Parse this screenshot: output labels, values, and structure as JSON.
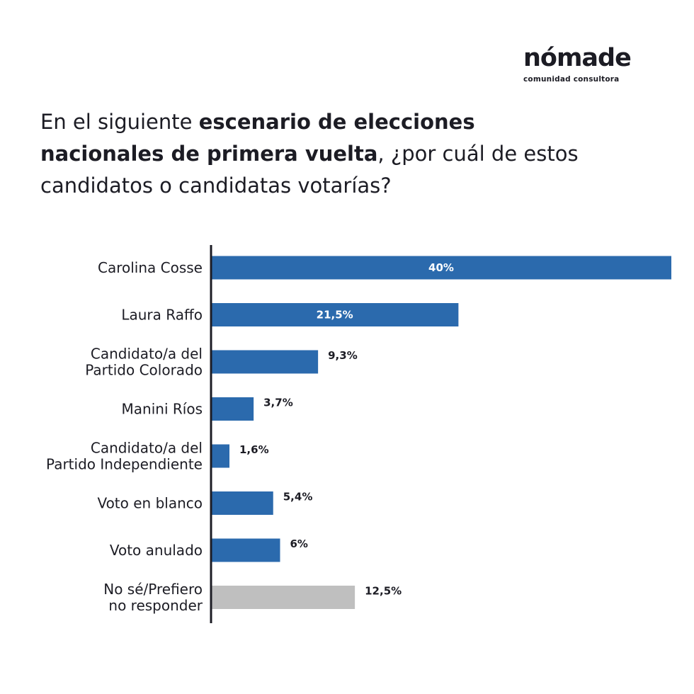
{
  "logo": {
    "name": "nómade",
    "tagline": "comunidad consultora"
  },
  "question": {
    "part1": "En el siguiente ",
    "bold": "escenario de elecciones nacionales de primera vuelta",
    "part2": ", ¿por cuál de estos candidatos o candidatas votarías?"
  },
  "colors": {
    "bar": "#2b6aad",
    "bar_muted": "#bfbfbf",
    "axis": "#1c1c24",
    "label_inside": "#ffffff",
    "label_outside": "#1c1c24"
  },
  "chart_data": {
    "type": "bar",
    "orientation": "horizontal",
    "categories": [
      [
        "Carolina Cosse"
      ],
      [
        "Laura Raffo"
      ],
      [
        "Candidato/a del",
        "Partido Colorado"
      ],
      [
        "Manini Ríos"
      ],
      [
        "Candidato/a del",
        "Partido Independiente"
      ],
      [
        "Voto en blanco"
      ],
      [
        "Voto anulado"
      ],
      [
        "No sé/Prefiero",
        "no responder"
      ]
    ],
    "values": [
      40,
      21.5,
      9.3,
      3.7,
      1.6,
      5.4,
      6,
      12.5
    ],
    "value_labels": [
      "40%",
      "21,5%",
      "9,3%",
      "3,7%",
      "1,6%",
      "5,4%",
      "6%",
      "12,5%"
    ],
    "label_inside": [
      true,
      true,
      false,
      false,
      false,
      false,
      false,
      false
    ],
    "muted": [
      false,
      false,
      false,
      false,
      false,
      false,
      false,
      true
    ],
    "xlim": [
      0,
      40
    ]
  }
}
